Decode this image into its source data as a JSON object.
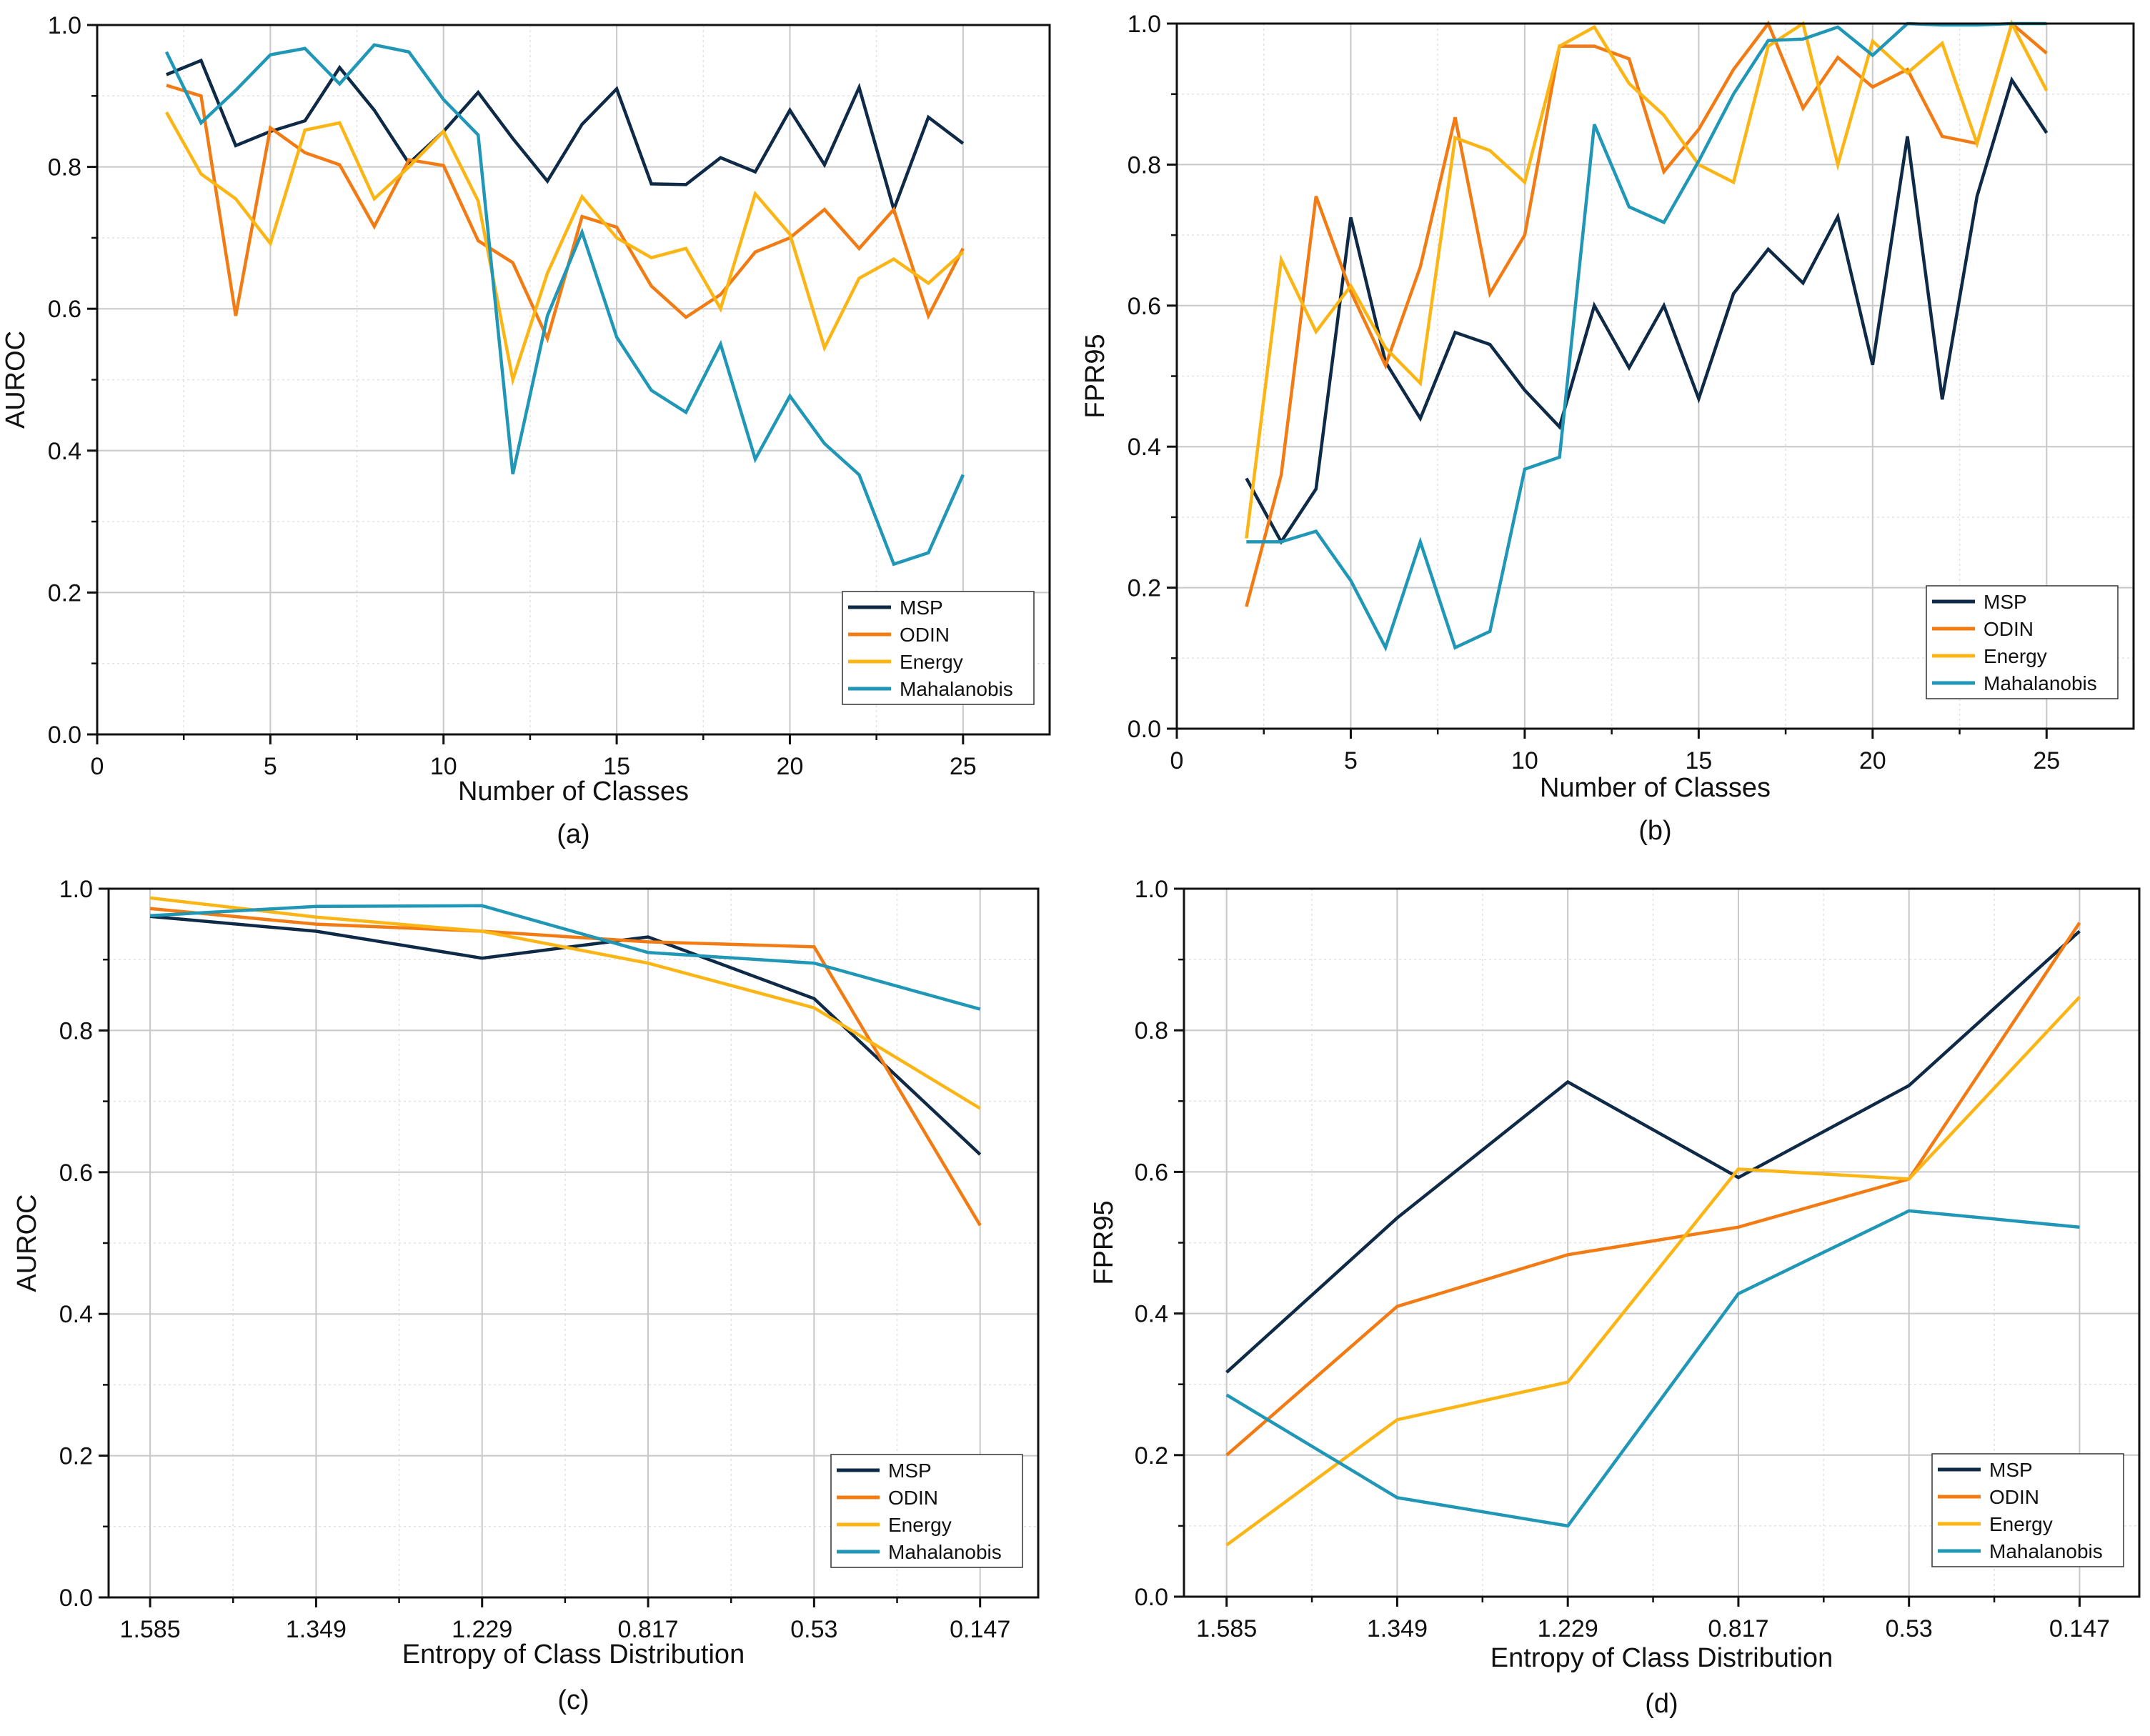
{
  "colors": {
    "MSP": "#0e2a47",
    "ODIN": "#f27b13",
    "Energy": "#fbb514",
    "Mahalanobis": "#2097b6",
    "grid": "#c8c8c8",
    "axis": "#111111"
  },
  "chart_data": [
    {
      "type": "line",
      "caption": "(a)",
      "xlabel": "Number of Classes",
      "ylabel": "AUROC",
      "xlim": [
        0,
        27.5
      ],
      "ylim": [
        0,
        1.0
      ],
      "xticks": [
        0,
        5,
        10,
        15,
        20,
        25
      ],
      "xtick_labels": [
        "0",
        "5",
        "10",
        "15",
        "20",
        "25"
      ],
      "yticks": [
        0,
        0.2,
        0.4,
        0.6,
        0.8,
        1.0
      ],
      "ytick_labels": [
        "0.0",
        "0.2",
        "0.4",
        "0.6",
        "0.8",
        "1.0"
      ],
      "grid": true,
      "legend": "bottom-right",
      "x": [
        2,
        3,
        4,
        5,
        6,
        7,
        8,
        9,
        10,
        11,
        12,
        13,
        14,
        15,
        16,
        17,
        18,
        19,
        20,
        21,
        22,
        23,
        24,
        25
      ],
      "series": [
        {
          "name": "MSP",
          "values": [
            0.93,
            0.95,
            0.83,
            0.85,
            0.865,
            0.94,
            0.88,
            0.805,
            0.85,
            0.905,
            0.84,
            0.78,
            0.86,
            0.91,
            0.776,
            0.775,
            0.813,
            0.793,
            0.88,
            0.803,
            0.912,
            0.74,
            0.87,
            0.833
          ]
        },
        {
          "name": "ODIN",
          "values": [
            0.915,
            0.9,
            0.59,
            0.855,
            0.82,
            0.803,
            0.716,
            0.81,
            0.802,
            0.696,
            0.665,
            0.558,
            0.73,
            0.715,
            0.632,
            0.588,
            0.62,
            0.68,
            0.7,
            0.74,
            0.685,
            0.74,
            0.59,
            0.685
          ]
        },
        {
          "name": "Energy",
          "values": [
            0.877,
            0.79,
            0.755,
            0.692,
            0.852,
            0.862,
            0.755,
            0.8,
            0.85,
            0.752,
            0.5,
            0.65,
            0.758,
            0.7,
            0.672,
            0.685,
            0.6,
            0.762,
            0.705,
            0.545,
            0.643,
            0.67,
            0.636,
            0.68
          ]
        },
        {
          "name": "Mahalanobis",
          "values": [
            0.962,
            0.862,
            0.908,
            0.958,
            0.967,
            0.917,
            0.972,
            0.962,
            0.895,
            0.845,
            0.367,
            0.59,
            0.708,
            0.56,
            0.485,
            0.454,
            0.55,
            0.388,
            0.477,
            0.41,
            0.366,
            0.24,
            0.256,
            0.366
          ]
        }
      ]
    },
    {
      "type": "line",
      "caption": "(b)",
      "xlabel": "Number of Classes",
      "ylabel": "FPR95",
      "xlim": [
        0,
        27.5
      ],
      "ylim": [
        0,
        1.0
      ],
      "xticks": [
        0,
        5,
        10,
        15,
        20,
        25
      ],
      "xtick_labels": [
        "0",
        "5",
        "10",
        "15",
        "20",
        "25"
      ],
      "yticks": [
        0,
        0.2,
        0.4,
        0.6,
        0.8,
        1.0
      ],
      "ytick_labels": [
        "0.0",
        "0.2",
        "0.4",
        "0.6",
        "0.8",
        "1.0"
      ],
      "grid": true,
      "legend": "bottom-right",
      "x": [
        2,
        3,
        4,
        5,
        6,
        7,
        8,
        9,
        10,
        11,
        12,
        13,
        14,
        15,
        16,
        17,
        18,
        19,
        20,
        21,
        22,
        23,
        24,
        25
      ],
      "series": [
        {
          "name": "MSP",
          "values": [
            0.355,
            0.265,
            0.34,
            0.725,
            0.52,
            0.44,
            0.562,
            0.545,
            0.48,
            0.428,
            0.6,
            0.512,
            0.6,
            0.468,
            0.617,
            0.68,
            0.632,
            0.726,
            0.516,
            0.84,
            0.467,
            0.755,
            0.92,
            0.845
          ]
        },
        {
          "name": "ODIN",
          "values": [
            0.173,
            0.36,
            0.755,
            0.62,
            0.515,
            0.655,
            0.867,
            0.617,
            0.7,
            0.968,
            0.968,
            0.95,
            0.79,
            0.85,
            0.935,
            1.0,
            0.88,
            0.952,
            0.91,
            0.935,
            0.84,
            0.83,
            1.0,
            0.958
          ]
        },
        {
          "name": "Energy",
          "values": [
            0.27,
            0.665,
            0.563,
            0.628,
            0.54,
            0.49,
            0.838,
            0.82,
            0.775,
            0.968,
            0.995,
            0.915,
            0.87,
            0.8,
            0.775,
            0.968,
            1.0,
            0.8,
            0.975,
            0.93,
            0.972,
            0.83,
            1.0,
            0.905
          ]
        },
        {
          "name": "Mahalanobis",
          "values": [
            0.265,
            0.265,
            0.28,
            0.21,
            0.115,
            0.265,
            0.115,
            0.138,
            0.368,
            0.385,
            0.857,
            0.74,
            0.718,
            0.805,
            0.9,
            0.976,
            0.978,
            0.995,
            0.955,
            1.0,
            0.998,
            0.998,
            1.0,
            1.0
          ]
        }
      ]
    },
    {
      "type": "line",
      "caption": "(c)",
      "xlabel": "Entropy of Class Distribution",
      "ylabel": "AUROC",
      "xlim": [
        -0.25,
        5.35
      ],
      "ylim": [
        0,
        1.0
      ],
      "xticks": [
        0,
        1,
        2,
        3,
        4,
        5
      ],
      "xtick_labels": [
        "1.585",
        "1.349",
        "1.229",
        "0.817",
        "0.53",
        "0.147"
      ],
      "yticks": [
        0,
        0.2,
        0.4,
        0.6,
        0.8,
        1.0
      ],
      "ytick_labels": [
        "0.0",
        "0.2",
        "0.4",
        "0.6",
        "0.8",
        "1.0"
      ],
      "grid": true,
      "legend": "bottom-right",
      "categories": [
        "1.585",
        "1.349",
        "1.229",
        "0.817",
        "0.53",
        "0.147"
      ],
      "series": [
        {
          "name": "MSP",
          "values": [
            0.961,
            0.94,
            0.902,
            0.932,
            0.845,
            0.625
          ]
        },
        {
          "name": "ODIN",
          "values": [
            0.972,
            0.95,
            0.94,
            0.925,
            0.918,
            0.525
          ]
        },
        {
          "name": "Energy",
          "values": [
            0.987,
            0.96,
            0.94,
            0.895,
            0.832,
            0.69
          ]
        },
        {
          "name": "Mahalanobis",
          "values": [
            0.962,
            0.975,
            0.976,
            0.91,
            0.895,
            0.83
          ]
        }
      ]
    },
    {
      "type": "line",
      "caption": "(d)",
      "xlabel": "Entropy of Class Distribution",
      "ylabel": "FPR95",
      "xlim": [
        -0.25,
        5.35
      ],
      "ylim": [
        0,
        1.0
      ],
      "xticks": [
        0,
        1,
        2,
        3,
        4,
        5
      ],
      "xtick_labels": [
        "1.585",
        "1.349",
        "1.229",
        "0.817",
        "0.53",
        "0.147"
      ],
      "yticks": [
        0,
        0.2,
        0.4,
        0.6,
        0.8,
        1.0
      ],
      "ytick_labels": [
        "0.0",
        "0.2",
        "0.4",
        "0.6",
        "0.8",
        "1.0"
      ],
      "grid": true,
      "legend": "bottom-right",
      "categories": [
        "1.585",
        "1.349",
        "1.229",
        "0.817",
        "0.53",
        "0.147"
      ],
      "series": [
        {
          "name": "MSP",
          "values": [
            0.317,
            0.535,
            0.727,
            0.592,
            0.722,
            0.94
          ]
        },
        {
          "name": "ODIN",
          "values": [
            0.2,
            0.41,
            0.483,
            0.522,
            0.59,
            0.952
          ]
        },
        {
          "name": "Energy",
          "values": [
            0.073,
            0.25,
            0.303,
            0.604,
            0.59,
            0.847
          ]
        },
        {
          "name": "Mahalanobis",
          "values": [
            0.285,
            0.14,
            0.1,
            0.428,
            0.545,
            0.522
          ]
        }
      ]
    }
  ]
}
